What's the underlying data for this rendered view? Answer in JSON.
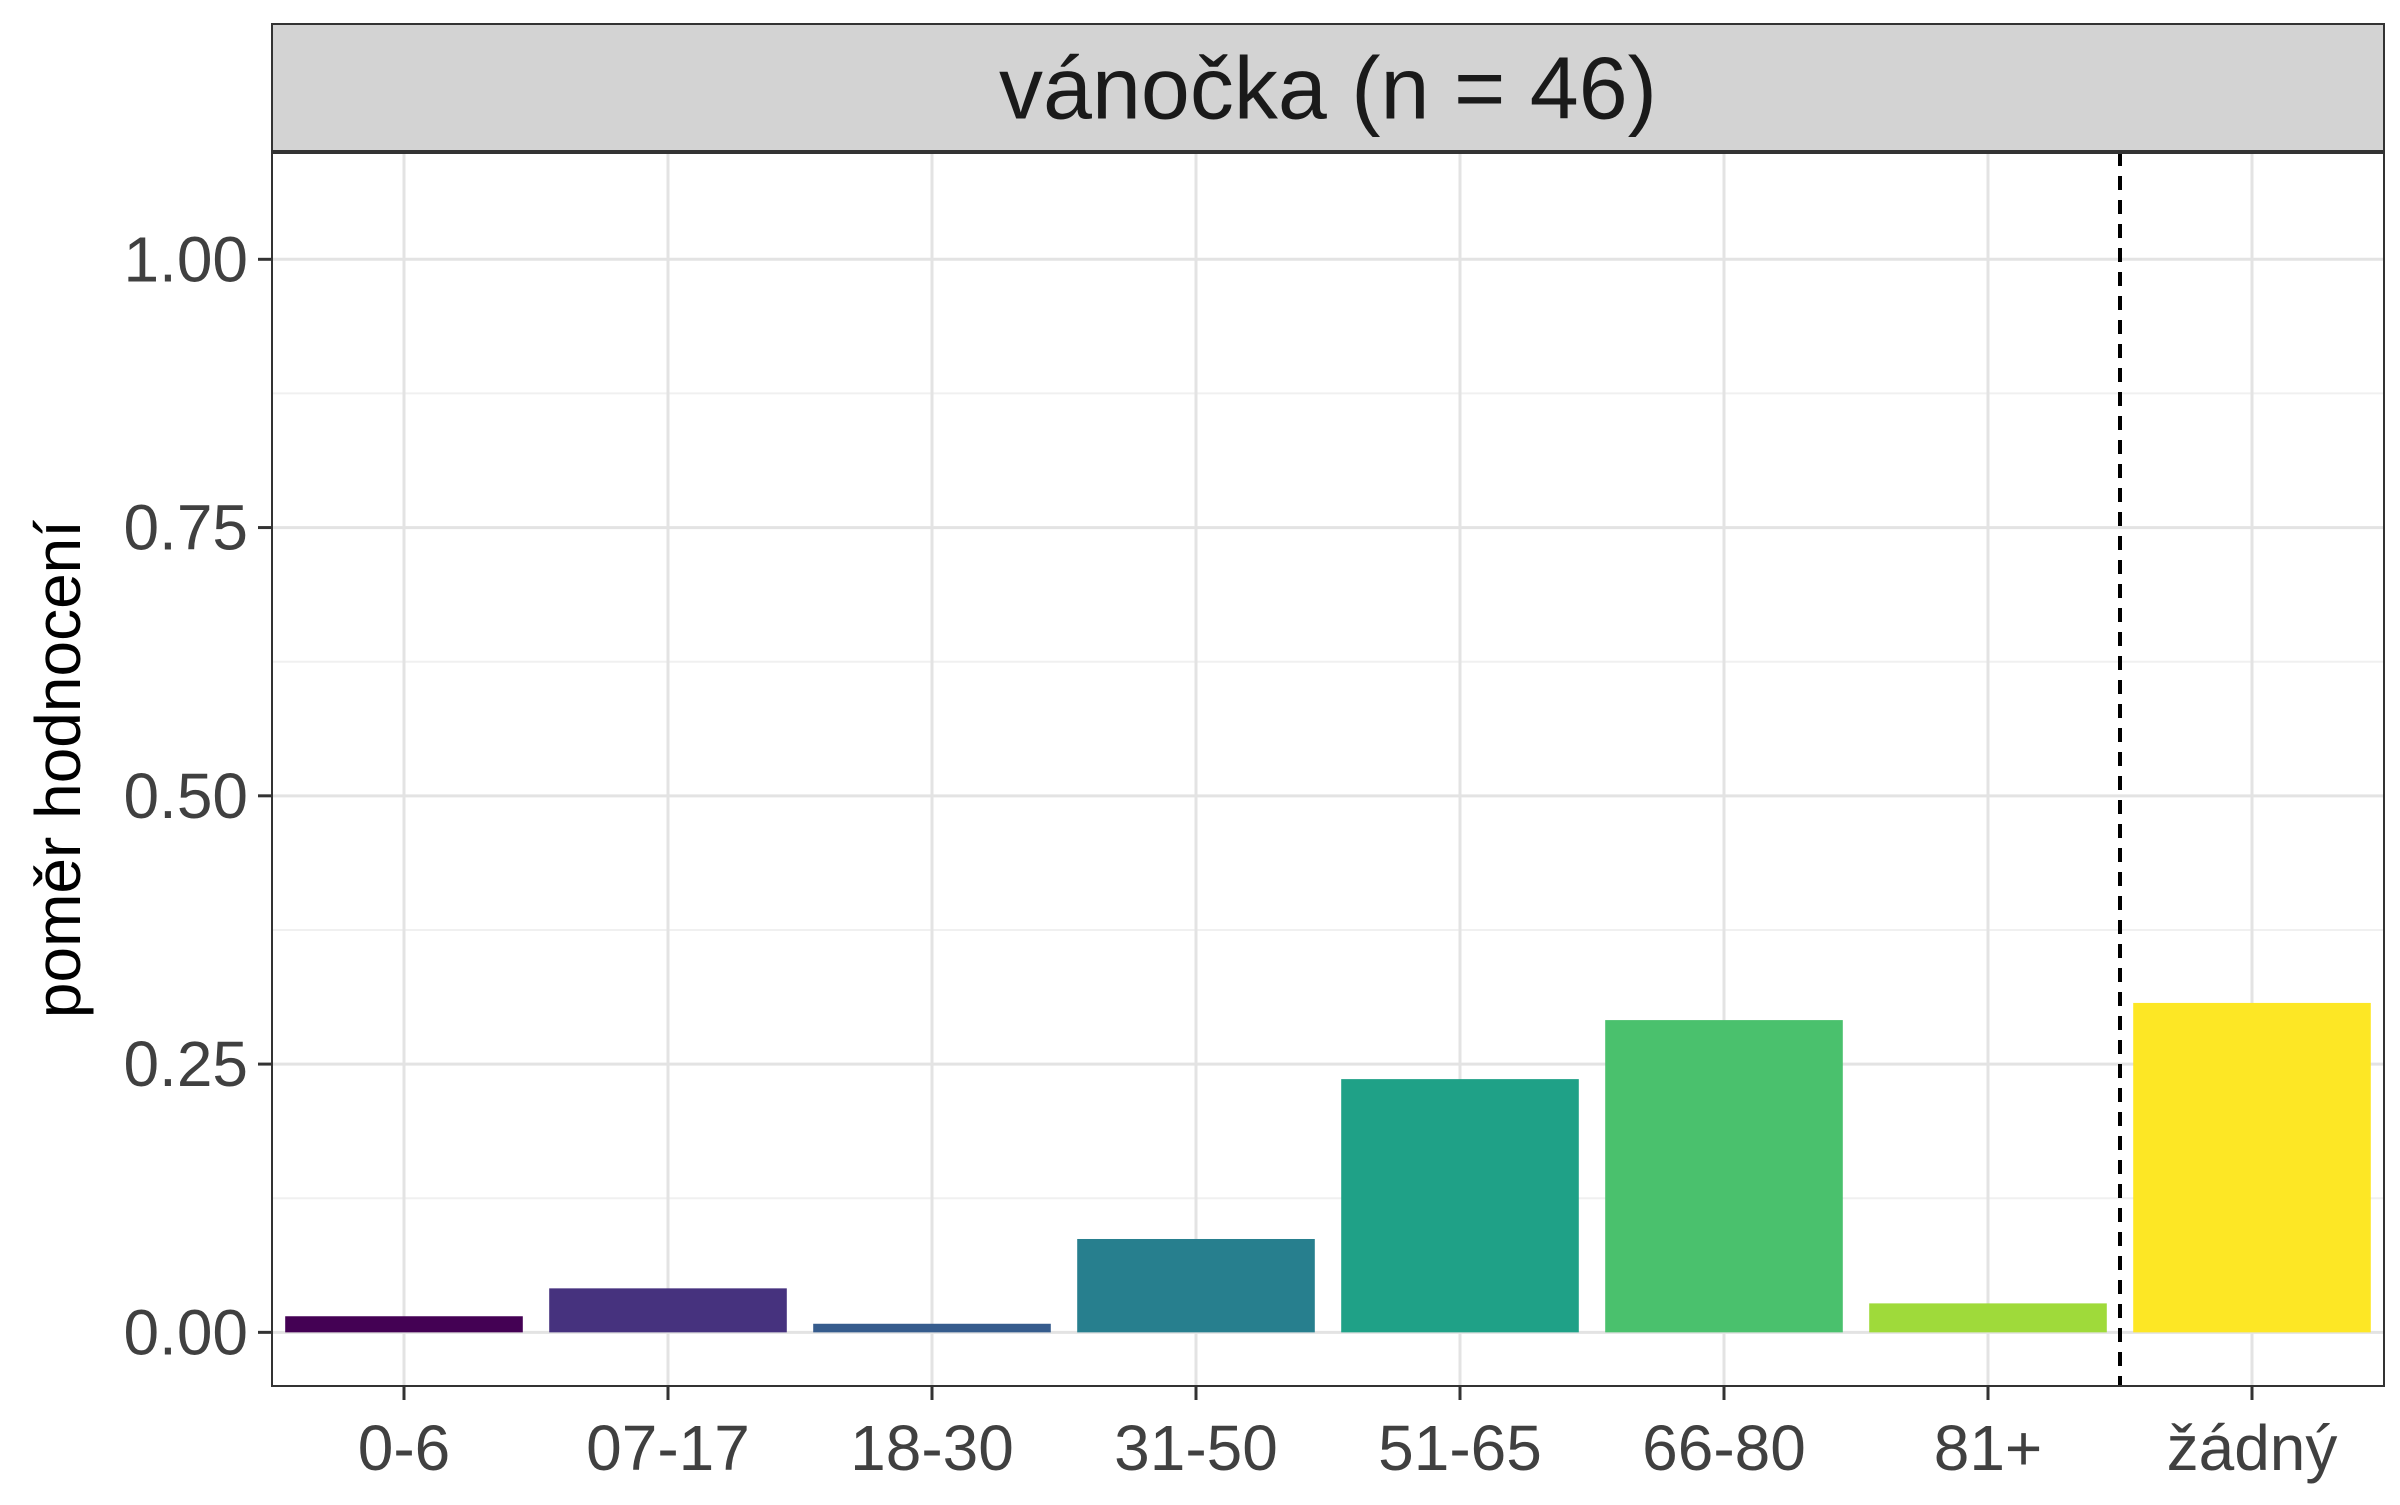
{
  "chart_data": {
    "type": "bar",
    "facet_title": "vánočka (n = 46)",
    "ylabel": "poměr hodnocení",
    "xlabel": "",
    "categories": [
      "0-6",
      "07-17",
      "18-30",
      "31-50",
      "51-65",
      "66-80",
      "81+",
      "žádný"
    ],
    "values": [
      0.015,
      0.041,
      0.008,
      0.087,
      0.236,
      0.291,
      0.027,
      0.307
    ],
    "colors": [
      "#440154",
      "#46327E",
      "#365C8D",
      "#277F8E",
      "#1FA187",
      "#4AC16D",
      "#9FDA3A",
      "#FDE725"
    ],
    "ylim": [
      -0.05,
      1.1
    ],
    "yticks": [
      0.0,
      0.25,
      0.5,
      0.75,
      1.0
    ],
    "ytick_labels": [
      "0.00",
      "0.25",
      "0.50",
      "0.75",
      "1.00"
    ],
    "separator_after_category": "81+",
    "separator_style": "dashed",
    "grid": true,
    "legend": "none"
  }
}
